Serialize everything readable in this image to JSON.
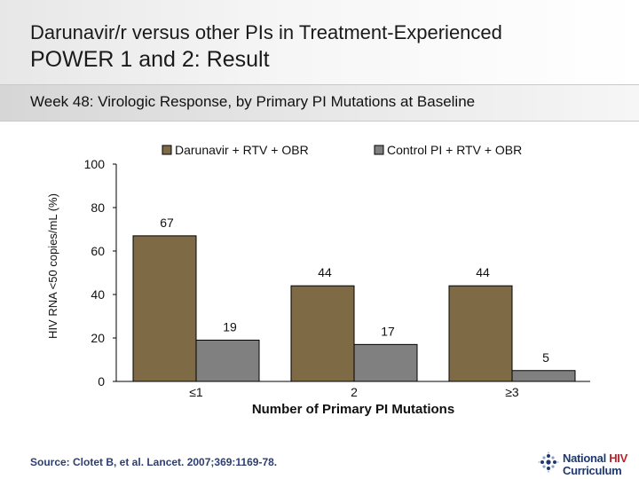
{
  "header": {
    "title_line1": "Darunavir/r versus other PIs in Treatment-Experienced",
    "title_line2": "POWER 1 and 2: Result",
    "subtitle": "Week 48: Virologic Response, by Primary PI Mutations at Baseline"
  },
  "chart_data": {
    "type": "bar",
    "title": "",
    "xlabel": "Number of Primary PI Mutations",
    "ylabel": "HIV RNA <50 copies/mL (%)",
    "ylim": [
      0,
      100
    ],
    "yticks": [
      0,
      20,
      40,
      60,
      80,
      100
    ],
    "categories": [
      "≤1",
      "2",
      "≥3"
    ],
    "series": [
      {
        "name": "Darunavir + RTV + OBR",
        "color": "#7f6a46",
        "values": [
          67,
          44,
          44
        ]
      },
      {
        "name": "Control PI + RTV + OBR",
        "color": "#808080",
        "values": [
          19,
          17,
          5
        ]
      }
    ],
    "legend_position": "top"
  },
  "footer": {
    "source": "Source: Clotet B, et al. Lancet. 2007;369:1169-78.",
    "logo_word1": "National",
    "logo_word2": "HIV",
    "logo_word3": "Curriculum"
  }
}
